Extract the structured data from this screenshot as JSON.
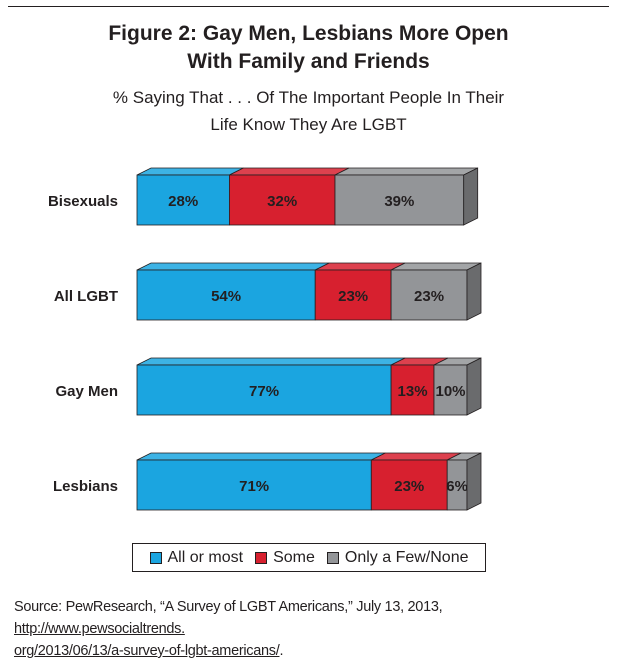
{
  "title_line1": "Figure 2: Gay Men, Lesbians More Open",
  "title_line2": "With Family and Friends",
  "subtitle_line1": "% Saying That . . .  Of The Important People In Their",
  "subtitle_line2": "Life Know They Are LGBT",
  "colors": {
    "all_or_most": "#1ba5e0",
    "some": "#d7202f",
    "few_none": "#939598"
  },
  "legend": [
    {
      "label": "All or most",
      "color": "#1ba5e0"
    },
    {
      "label": "Some",
      "color": "#d7202f"
    },
    {
      "label": "Only a Few/None",
      "color": "#939598"
    }
  ],
  "chart_data": {
    "type": "bar",
    "orientation": "horizontal",
    "stacked": true,
    "categories": [
      "Bisexuals",
      "All LGBT",
      "Gay Men",
      "Lesbians"
    ],
    "series": [
      {
        "name": "All or most",
        "values": [
          28,
          54,
          77,
          71
        ],
        "labels": [
          "28%",
          "54%",
          "77%",
          "71%"
        ]
      },
      {
        "name": "Some",
        "values": [
          32,
          23,
          13,
          23
        ],
        "labels": [
          "32%",
          "23%",
          "13%",
          "23%"
        ]
      },
      {
        "name": "Only a Few/None",
        "values": [
          39,
          23,
          10,
          6
        ],
        "labels": [
          "39%",
          "23%",
          "10%",
          "6%"
        ]
      }
    ],
    "title": "Figure 2: Gay Men, Lesbians More Open With Family and Friends",
    "subtitle": "% Saying That . . .  Of The Important People In Their Life Know They Are LGBT",
    "legend_position": "bottom",
    "grid": false
  },
  "source_text": "Source: PewResearch, “A Survey of LGBT Americans,” July 13, 2013, ",
  "source_link_1": "http://www.pewsocialtrends.",
  "source_link_2": "org/2013/06/13/a-survey-of-lgbt-americans/",
  "source_end": "."
}
